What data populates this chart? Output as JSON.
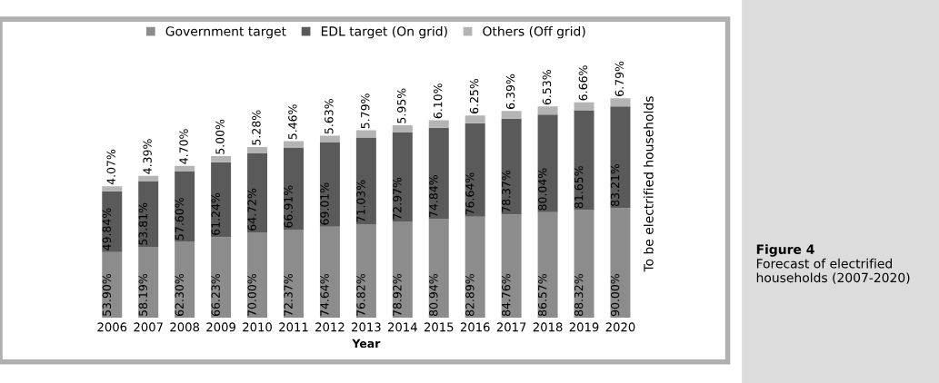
{
  "chart_data": {
    "type": "bar",
    "stacked": true,
    "xlabel": "Year",
    "y2label": "To be electrified households",
    "legend": "top",
    "grid": false,
    "categories": [
      "2006",
      "2007",
      "2008",
      "2009",
      "2010",
      "2011",
      "2012",
      "2013",
      "2014",
      "2015",
      "2016",
      "2017",
      "2018",
      "2019",
      "2020"
    ],
    "series": [
      {
        "name": "Government target",
        "color": "#8c8c8c",
        "values": [
          53.9,
          58.19,
          62.3,
          66.23,
          70.0,
          72.37,
          74.64,
          76.82,
          78.92,
          80.94,
          82.89,
          84.76,
          86.57,
          88.32,
          90.0
        ],
        "value_labels": [
          "53.90%",
          "58.19%",
          "62.30%",
          "66.23%",
          "70.00%",
          "72.37%",
          "74.64%",
          "76.82%",
          "78.92%",
          "80.94%",
          "82.89%",
          "84.76%",
          "86.57%",
          "88.32%",
          "90.00%"
        ]
      },
      {
        "name": "EDL target (On grid)",
        "color": "#5a5a5a",
        "values": [
          49.84,
          53.81,
          57.6,
          61.24,
          64.72,
          66.91,
          69.01,
          71.03,
          72.97,
          74.84,
          76.64,
          78.37,
          80.04,
          81.65,
          83.21
        ],
        "value_labels": [
          "49.84%",
          "53.81%",
          "57.60%",
          "61.24%",
          "64.72%",
          "66.91%",
          "69.01%",
          "71.03%",
          "72.97%",
          "74.84%",
          "76.64%",
          "78.37%",
          "80.04%",
          "81.65%",
          "83.21%"
        ]
      },
      {
        "name": "Others (Off grid)",
        "color": "#b4b4b4",
        "values": [
          4.07,
          4.39,
          4.7,
          5.0,
          5.28,
          5.46,
          5.63,
          5.79,
          5.95,
          6.1,
          6.25,
          6.39,
          6.53,
          6.66,
          6.79
        ],
        "value_labels": [
          "4.07%",
          "4.39%",
          "4.70%",
          "5.00%",
          "5.28%",
          "5.46%",
          "5.63%",
          "5.79%",
          "5.95%",
          "6.10%",
          "6.25%",
          "6.39%",
          "6.53%",
          "6.66%",
          "6.79%"
        ]
      }
    ],
    "annotations": [
      "Figure 4",
      "Forecast of electrified households (2007-2020)"
    ]
  }
}
